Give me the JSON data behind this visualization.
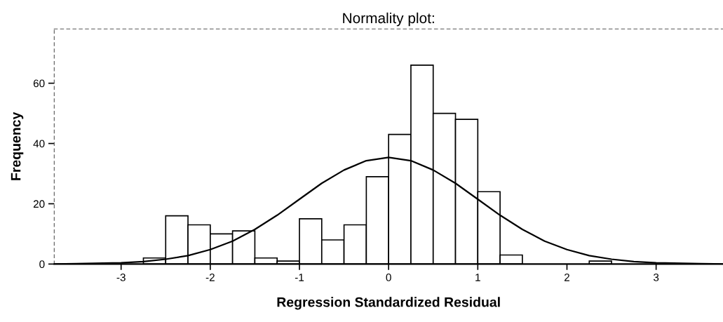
{
  "chart_data": {
    "type": "histogram",
    "title": "Normality plot:",
    "xlabel": "Regression Standardized Residual",
    "ylabel": "Frequency",
    "bins": [
      -2.75,
      -2.5,
      -2.25,
      -2.0,
      -1.75,
      -1.5,
      -1.25,
      -1.0,
      -0.75,
      -0.5,
      -0.25,
      0.0,
      0.25,
      0.5,
      0.75,
      1.0,
      1.25,
      1.5,
      1.75,
      2.0,
      2.25,
      2.5
    ],
    "values": [
      2,
      16,
      13,
      10,
      11,
      2,
      1,
      15,
      8,
      13,
      29,
      43,
      66,
      50,
      48,
      24,
      3,
      0,
      0,
      0,
      1
    ],
    "color": "#ffffff",
    "series": [
      {
        "type": "line",
        "color": "#000000",
        "x": [
          -3.75,
          -3.5,
          -3.0,
          -2.75,
          -2.5,
          -2.25,
          -2.0,
          -1.75,
          -1.5,
          -1.25,
          -1.0,
          -0.75,
          -0.5,
          -0.25,
          0.0,
          0.25,
          0.5,
          0.75,
          1.0,
          1.25,
          1.5,
          1.75,
          2.0,
          2.25,
          2.5,
          2.75,
          3.0,
          3.5,
          3.75
        ],
        "values": [
          0.0,
          0.1,
          0.4,
          0.8,
          1.6,
          2.8,
          4.8,
          7.6,
          11.5,
          16.2,
          21.5,
          26.8,
          31.2,
          34.3,
          35.4,
          34.3,
          31.2,
          26.8,
          21.5,
          16.2,
          11.5,
          7.6,
          4.8,
          2.8,
          1.6,
          0.8,
          0.4,
          0.1,
          0.0
        ]
      }
    ],
    "xlim": [
      -3.75,
      3.75
    ],
    "ylim": [
      0,
      78
    ],
    "xticks": [
      -3,
      -2,
      -1,
      0,
      1,
      2,
      3
    ],
    "yticks": [
      0,
      20,
      40,
      60
    ],
    "grid": false,
    "legend": false
  }
}
